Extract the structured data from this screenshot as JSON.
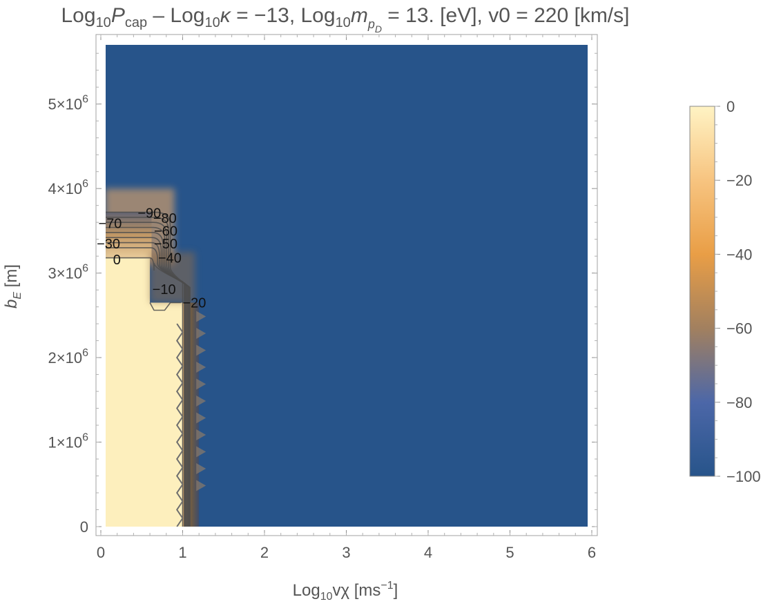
{
  "chart_data": {
    "type": "heatmap",
    "title": {
      "parts": [
        "Log",
        "10",
        "P",
        "cap",
        " – Log",
        "10",
        "κ",
        " = −13, Log",
        "10",
        "m",
        "p",
        "D",
        " = 13. [eV], v0 = 220 [km/s]"
      ]
    },
    "xlabel": {
      "parts": [
        "Log",
        "10",
        "vχ [ms",
        "−1",
        "]"
      ]
    },
    "ylabel": {
      "parts": [
        "b",
        "E",
        " [m]"
      ]
    },
    "xlim": [
      0,
      6
    ],
    "ylim": [
      0,
      5700000
    ],
    "x_ticks": [
      0,
      1,
      2,
      3,
      4,
      5,
      6
    ],
    "y_ticks": [
      {
        "value": 0,
        "mantissa": "0",
        "exponent": ""
      },
      {
        "value": 1000000,
        "mantissa": "1×10",
        "exponent": "6"
      },
      {
        "value": 2000000,
        "mantissa": "2×10",
        "exponent": "6"
      },
      {
        "value": 3000000,
        "mantissa": "3×10",
        "exponent": "6"
      },
      {
        "value": 4000000,
        "mantissa": "4×10",
        "exponent": "6"
      },
      {
        "value": 5000000,
        "mantissa": "5×10",
        "exponent": "6"
      }
    ],
    "colorbar": {
      "range": [
        -100,
        0
      ],
      "ticks": [
        "0",
        "−20",
        "−40",
        "−60",
        "−80",
        "−100"
      ],
      "tick_values": [
        0,
        -20,
        -40,
        -60,
        -80,
        -100
      ],
      "colors": [
        "#fff3c4",
        "#f7c480",
        "#e99e46",
        "#a2805f",
        "#4c67a8",
        "#27548a"
      ]
    },
    "region": {
      "low_fill": "#27548a",
      "high_fill": "#fdefbd",
      "high_region": [
        [
          0.05,
          0
        ],
        [
          1.0,
          0
        ],
        [
          1.0,
          2650000
        ],
        [
          0.6,
          2650000
        ],
        [
          0.6,
          3180000
        ],
        [
          0.05,
          3180000
        ]
      ],
      "transition_band": [
        [
          1.0,
          1.2
        ],
        [
          0,
          2650000
        ]
      ]
    },
    "contours": [
      {
        "level": 0,
        "label": "0",
        "lx": 0.15,
        "ly": 3160000,
        "offset": 0
      },
      {
        "level": -10,
        "label": "−10",
        "lx": 0.63,
        "ly": 2810000,
        "offset": 0.02
      },
      {
        "level": -20,
        "label": "−20",
        "lx": 1.0,
        "ly": 2650000,
        "offset": 0.04
      },
      {
        "level": -30,
        "label": "−30",
        "lx": -0.05,
        "ly": 3350000,
        "offset": 0.06
      },
      {
        "level": -40,
        "label": "−40",
        "lx": 0.7,
        "ly": 3180000,
        "offset": 0.08
      },
      {
        "level": -50,
        "label": "−50",
        "lx": 0.65,
        "ly": 3350000,
        "offset": 0.1
      },
      {
        "level": -60,
        "label": "−60",
        "lx": 0.65,
        "ly": 3500000,
        "offset": 0.12
      },
      {
        "level": -70,
        "label": "−70",
        "lx": -0.03,
        "ly": 3590000,
        "offset": 0.14
      },
      {
        "level": -80,
        "label": "−80",
        "lx": 0.64,
        "ly": 3650000,
        "offset": 0.16
      },
      {
        "level": -90,
        "label": "−90",
        "lx": 0.45,
        "ly": 3710000,
        "offset": 0.18
      }
    ]
  }
}
